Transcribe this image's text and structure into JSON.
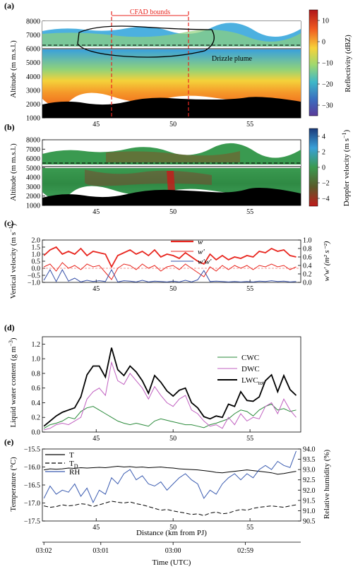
{
  "chart_data": [
    {
      "panel": "(a)",
      "type": "heatmap",
      "ylabel": "Altitude (m m.s.l.)",
      "yticks": [
        1000,
        2000,
        3000,
        4000,
        5000,
        6000,
        7000,
        8000
      ],
      "xticks": [
        45,
        50,
        55
      ],
      "xlim": [
        41.5,
        58.3
      ],
      "ylim": [
        1000,
        8000
      ],
      "colorbar": {
        "label": "Reflectivity (dBZ)",
        "ticks": [
          10,
          0,
          -10,
          -20,
          -30
        ],
        "range": [
          15,
          -35
        ]
      },
      "annotations": [
        "CFAD bounds",
        "Drizzle plume"
      ],
      "cfad_bounds_x": [
        46,
        51
      ]
    },
    {
      "panel": "(b)",
      "type": "heatmap",
      "ylabel": "Altitude (m m.s.l.)",
      "yticks": [
        1000,
        2000,
        3000,
        4000,
        5000,
        6000,
        7000,
        8000
      ],
      "xticks": [
        45,
        50,
        55
      ],
      "xlim": [
        41.5,
        58.3
      ],
      "ylim": [
        1000,
        8000
      ],
      "colorbar": {
        "label_main": "Doppler velocity (m s",
        "label_sup": "−1",
        "label_end": ")",
        "ticks": [
          4,
          2,
          0,
          -2,
          -4
        ],
        "range": [
          5,
          -5
        ]
      }
    },
    {
      "panel": "(c)",
      "type": "line",
      "ylabel_main": "Vertical velocity (m s",
      "ylabel_sup": "−1",
      "ylabel_end": ")",
      "y2label": "w'w' (m² s⁻²)",
      "ylim": [
        -1.0,
        2.0
      ],
      "y2lim": [
        0.0,
        1.0
      ],
      "yticks": [
        -1.0,
        -0.5,
        0.0,
        0.5,
        1.0,
        1.5,
        2.0
      ],
      "y2ticks": [
        0.0,
        0.2,
        0.4,
        0.6,
        0.8,
        1.0
      ],
      "xticks": [
        45,
        50,
        55
      ],
      "series": [
        {
          "name": "w",
          "axis": "left",
          "color": "#e8261f",
          "x": [
            41.6,
            42.0,
            42.4,
            42.8,
            43.2,
            43.6,
            44.0,
            44.4,
            44.8,
            45.2,
            45.6,
            46.0,
            46.4,
            46.8,
            47.2,
            47.6,
            48.0,
            48.4,
            48.8,
            49.2,
            49.6,
            50.0,
            50.4,
            50.8,
            51.2,
            51.6,
            52.0,
            52.4,
            52.8,
            53.2,
            53.6,
            54.0,
            54.4,
            54.8,
            55.2,
            55.6,
            56.0,
            56.4,
            56.8,
            57.2,
            57.6,
            58.0
          ],
          "values": [
            0.9,
            1.3,
            1.5,
            1.0,
            1.2,
            1.0,
            1.4,
            0.9,
            1.2,
            1.1,
            1.0,
            0.1,
            0.9,
            1.1,
            1.3,
            1.0,
            1.2,
            0.9,
            1.3,
            0.8,
            1.0,
            0.9,
            0.7,
            1.1,
            0.8,
            0.5,
            0.3,
            1.0,
            0.6,
            0.9,
            0.6,
            0.8,
            0.7,
            0.9,
            0.8,
            1.2,
            1.1,
            1.4,
            1.2,
            1.3,
            0.9,
            0.8
          ]
        },
        {
          "name": "w'",
          "axis": "left",
          "color": "#e8261f",
          "x": [
            41.6,
            42.0,
            42.4,
            42.8,
            43.2,
            43.6,
            44.0,
            44.4,
            44.8,
            45.2,
            45.6,
            46.0,
            46.4,
            46.8,
            47.2,
            47.6,
            48.0,
            48.4,
            48.8,
            49.2,
            49.6,
            50.0,
            50.4,
            50.8,
            51.2,
            51.6,
            52.0,
            52.4,
            52.8,
            53.2,
            53.6,
            54.0,
            54.4,
            54.8,
            55.2,
            55.6,
            56.0,
            56.4,
            56.8,
            57.2,
            57.6,
            58.0
          ],
          "values": [
            0.1,
            0.3,
            -0.2,
            0.4,
            0.0,
            0.2,
            -0.1,
            0.3,
            0.1,
            0.2,
            -0.3,
            -0.8,
            0.0,
            0.3,
            0.2,
            -0.1,
            0.3,
            0.0,
            0.2,
            -0.2,
            0.1,
            0.2,
            -0.1,
            0.3,
            0.0,
            -0.3,
            -0.6,
            0.1,
            -0.2,
            0.2,
            -0.1,
            0.2,
            0.0,
            0.2,
            -0.1,
            0.2,
            0.1,
            0.3,
            0.1,
            0.2,
            -0.1,
            0.1
          ]
        },
        {
          "name": "w'w'",
          "axis": "right",
          "color": "#3650a8",
          "x": [
            41.6,
            42.0,
            42.4,
            42.8,
            43.2,
            43.6,
            44.0,
            44.4,
            44.8,
            45.2,
            45.6,
            46.0,
            46.4,
            46.8,
            47.2,
            47.6,
            48.0,
            48.4,
            48.8,
            49.2,
            49.6,
            50.0,
            50.4,
            50.8,
            51.2,
            51.6,
            52.0,
            52.4,
            52.8,
            53.2,
            53.6,
            54.0,
            54.4,
            54.8,
            55.2,
            55.6,
            56.0,
            56.4,
            56.8,
            57.2,
            57.6,
            58.0
          ],
          "values": [
            0.05,
            0.3,
            0.02,
            0.3,
            0.03,
            0.1,
            0.01,
            0.05,
            0.02,
            0.04,
            0.02,
            0.3,
            0.01,
            0.04,
            0.03,
            0.01,
            0.05,
            0.01,
            0.03,
            0.02,
            0.01,
            0.03,
            0.01,
            0.05,
            0.01,
            0.06,
            0.28,
            0.02,
            0.03,
            0.02,
            0.01,
            0.02,
            0.01,
            0.02,
            0.01,
            0.03,
            0.02,
            0.04,
            0.02,
            0.03,
            0.01,
            0.02
          ]
        }
      ]
    },
    {
      "panel": "(d)",
      "type": "line",
      "ylabel_main": "Liquid water content (g m",
      "ylabel_sup": "−3",
      "ylabel_end": ")",
      "ylim": [
        0.0,
        1.3
      ],
      "yticks": [
        0.0,
        0.2,
        0.4,
        0.6,
        0.8,
        1.0,
        1.2
      ],
      "xticks": [
        45,
        50,
        55
      ],
      "series": [
        {
          "name": "CWC",
          "color": "#2a8a3a",
          "x": [
            41.6,
            42.0,
            42.4,
            42.8,
            43.2,
            43.6,
            44.0,
            44.4,
            44.8,
            45.2,
            45.6,
            46.0,
            46.4,
            46.8,
            47.2,
            47.6,
            48.0,
            48.4,
            48.8,
            49.2,
            49.6,
            50.0,
            50.4,
            50.8,
            51.2,
            51.6,
            52.0,
            52.4,
            52.8,
            53.2,
            53.6,
            54.0,
            54.4,
            54.8,
            55.2,
            55.6,
            56.0,
            56.4,
            56.8,
            57.2,
            57.6,
            58.0
          ],
          "values": [
            0.05,
            0.1,
            0.12,
            0.15,
            0.2,
            0.18,
            0.28,
            0.33,
            0.35,
            0.3,
            0.25,
            0.2,
            0.15,
            0.12,
            0.1,
            0.12,
            0.1,
            0.08,
            0.15,
            0.18,
            0.16,
            0.14,
            0.12,
            0.1,
            0.1,
            0.08,
            0.06,
            0.1,
            0.12,
            0.15,
            0.18,
            0.25,
            0.3,
            0.28,
            0.22,
            0.3,
            0.35,
            0.38,
            0.3,
            0.32,
            0.28,
            0.3
          ]
        },
        {
          "name": "DWC",
          "color": "#c060c0",
          "x": [
            41.6,
            42.0,
            42.4,
            42.8,
            43.2,
            43.6,
            44.0,
            44.4,
            44.8,
            45.2,
            45.6,
            46.0,
            46.4,
            46.8,
            47.2,
            47.6,
            48.0,
            48.4,
            48.8,
            49.2,
            49.6,
            50.0,
            50.4,
            50.8,
            51.2,
            51.6,
            52.0,
            52.4,
            52.8,
            53.2,
            53.6,
            54.0,
            54.4,
            54.8,
            55.2,
            55.6,
            56.0,
            56.4,
            56.8,
            57.2,
            57.6,
            58.0
          ],
          "values": [
            0.03,
            0.05,
            0.1,
            0.12,
            0.1,
            0.15,
            0.2,
            0.45,
            0.55,
            0.6,
            0.5,
            0.95,
            0.7,
            0.65,
            0.8,
            0.7,
            0.6,
            0.45,
            0.62,
            0.5,
            0.4,
            0.35,
            0.45,
            0.5,
            0.3,
            0.25,
            0.15,
            0.08,
            0.1,
            0.05,
            0.2,
            0.1,
            0.25,
            0.15,
            0.2,
            0.18,
            0.35,
            0.4,
            0.25,
            0.45,
            0.3,
            0.2
          ]
        },
        {
          "name": "LWC_tot",
          "color": "#000000",
          "x": [
            41.6,
            42.0,
            42.4,
            42.8,
            43.2,
            43.6,
            44.0,
            44.4,
            44.8,
            45.2,
            45.6,
            46.0,
            46.4,
            46.8,
            47.2,
            47.6,
            48.0,
            48.4,
            48.8,
            49.2,
            49.6,
            50.0,
            50.4,
            50.8,
            51.2,
            51.6,
            52.0,
            52.4,
            52.8,
            53.2,
            53.6,
            54.0,
            54.4,
            54.8,
            55.2,
            55.6,
            56.0,
            56.4,
            56.8,
            57.2,
            57.6,
            58.0
          ],
          "values": [
            0.08,
            0.15,
            0.22,
            0.27,
            0.3,
            0.33,
            0.48,
            0.78,
            0.9,
            0.9,
            0.75,
            1.15,
            0.85,
            0.77,
            0.9,
            0.82,
            0.7,
            0.53,
            0.77,
            0.68,
            0.56,
            0.49,
            0.57,
            0.6,
            0.4,
            0.33,
            0.21,
            0.18,
            0.22,
            0.2,
            0.38,
            0.35,
            0.55,
            0.43,
            0.42,
            0.48,
            0.7,
            0.78,
            0.55,
            0.77,
            0.58,
            0.5
          ]
        }
      ]
    },
    {
      "panel": "(e)",
      "type": "line",
      "ylabel": "Temperature (°C)",
      "y2label": "Relative humidity (%)",
      "ylim": [
        -17.5,
        -15.5
      ],
      "y2lim": [
        90.5,
        94.0
      ],
      "yticks": [
        -17.5,
        -17.0,
        -16.5,
        -16.0,
        -15.5
      ],
      "y2ticks": [
        90.5,
        91.0,
        91.5,
        92.0,
        92.5,
        93.0,
        93.5,
        94.0
      ],
      "xlabel": "Distance (km from PJ)",
      "xticks": [
        45,
        50,
        55
      ],
      "series": [
        {
          "name": "T",
          "axis": "left",
          "color": "#000000",
          "dash": "none",
          "x": [
            41.6,
            42.0,
            42.4,
            42.8,
            43.2,
            43.6,
            44.0,
            44.4,
            44.8,
            45.2,
            45.6,
            46.0,
            46.4,
            46.8,
            47.2,
            47.6,
            48.0,
            48.4,
            48.8,
            49.2,
            49.6,
            50.0,
            50.4,
            50.8,
            51.2,
            51.6,
            52.0,
            52.4,
            52.8,
            53.2,
            53.6,
            54.0,
            54.4,
            54.8,
            55.2,
            55.6,
            56.0,
            56.4,
            56.8,
            57.2,
            57.6,
            58.0
          ],
          "values": [
            -16.08,
            -16.05,
            -16.06,
            -16.05,
            -16.03,
            -16.04,
            -16.02,
            -16.03,
            -16.02,
            -16.01,
            -16.02,
            -16.0,
            -15.98,
            -16.0,
            -15.99,
            -16.01,
            -16.0,
            -16.02,
            -16.01,
            -16.0,
            -16.02,
            -16.03,
            -16.05,
            -16.06,
            -16.07,
            -16.08,
            -16.1,
            -16.12,
            -16.15,
            -16.16,
            -16.14,
            -16.12,
            -16.1,
            -16.08,
            -16.1,
            -16.12,
            -16.14,
            -16.16,
            -16.2,
            -16.18,
            -16.15,
            -16.12
          ]
        },
        {
          "name": "T_D",
          "axis": "left",
          "color": "#000000",
          "dash": "dashed",
          "x": [
            41.6,
            42.0,
            42.4,
            42.8,
            43.2,
            43.6,
            44.0,
            44.4,
            44.8,
            45.2,
            45.6,
            46.0,
            46.4,
            46.8,
            47.2,
            47.6,
            48.0,
            48.4,
            48.8,
            49.2,
            49.6,
            50.0,
            50.4,
            50.8,
            51.2,
            51.6,
            52.0,
            52.4,
            52.8,
            53.2,
            53.6,
            54.0,
            54.4,
            54.8,
            55.2,
            55.6,
            56.0,
            56.4,
            56.8,
            57.2,
            57.6,
            58.0
          ],
          "values": [
            -17.08,
            -17.12,
            -17.1,
            -17.05,
            -17.08,
            -17.06,
            -17.02,
            -17.04,
            -17.1,
            -17.05,
            -17.0,
            -16.95,
            -16.98,
            -17.0,
            -16.97,
            -17.02,
            -17.05,
            -17.1,
            -17.15,
            -17.2,
            -17.18,
            -17.22,
            -17.25,
            -17.28,
            -17.32,
            -17.3,
            -17.35,
            -17.28,
            -17.25,
            -17.3,
            -17.28,
            -17.22,
            -17.18,
            -17.2,
            -17.15,
            -17.12,
            -17.1,
            -17.08,
            -17.1,
            -17.12,
            -17.08,
            -17.05
          ]
        },
        {
          "name": "RH",
          "axis": "right",
          "color": "#3a5bb0",
          "dash": "none",
          "x": [
            41.6,
            42.0,
            42.4,
            42.8,
            43.2,
            43.6,
            44.0,
            44.4,
            44.8,
            45.2,
            45.6,
            46.0,
            46.4,
            46.8,
            47.2,
            47.6,
            48.0,
            48.4,
            48.8,
            49.2,
            49.6,
            50.0,
            50.4,
            50.8,
            51.2,
            51.6,
            52.0,
            52.4,
            52.8,
            53.2,
            53.6,
            54.0,
            54.4,
            54.8,
            55.2,
            55.6,
            56.0,
            56.4,
            56.8,
            57.2,
            57.6,
            58.0
          ],
          "values": [
            91.6,
            92.2,
            91.8,
            92.0,
            91.9,
            92.3,
            91.7,
            92.1,
            91.4,
            92.0,
            91.8,
            92.6,
            92.3,
            92.8,
            93.0,
            92.5,
            92.7,
            92.3,
            92.2,
            92.4,
            92.0,
            92.3,
            92.6,
            92.8,
            92.5,
            92.3,
            91.6,
            92.0,
            91.8,
            92.3,
            92.6,
            92.8,
            92.5,
            92.8,
            92.6,
            93.0,
            93.2,
            93.0,
            93.4,
            93.2,
            93.1,
            93.9
          ]
        }
      ]
    }
  ],
  "legend_c": [
    "w",
    "w'",
    "w'w'"
  ],
  "legend_d": {
    "cwc": "CWC",
    "dwc": "DWC",
    "lwc_main": "LWC",
    "lwc_sub": "tot"
  },
  "legend_e": {
    "t": "T",
    "td_main": "T",
    "td_sub": "D",
    "rh": "RH"
  },
  "time_axis": {
    "label": "Time (UTC)",
    "ticks": [
      "03:02",
      "03:01",
      "03:00",
      "02:59"
    ],
    "tick_km": [
      41.6,
      45.3,
      50.0,
      54.7
    ]
  },
  "colors": {
    "red": "#e8261f",
    "blue": "#3650a8",
    "green": "#2a8a3a",
    "magenta": "#c060c0"
  }
}
